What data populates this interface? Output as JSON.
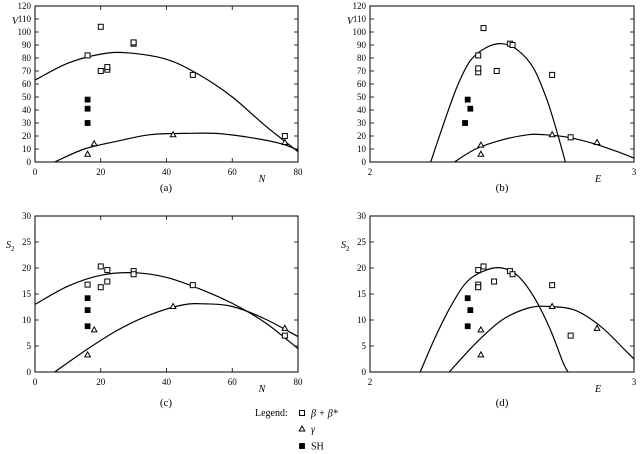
{
  "chart_data": [
    {
      "type": "scatter",
      "panel_label": "(a)",
      "xlabel": "N",
      "ylabel": "V",
      "xlim": [
        0,
        80
      ],
      "ylim": [
        0,
        120
      ],
      "xticks": [
        0,
        20,
        40,
        60,
        80
      ],
      "yticks": [
        0,
        10,
        20,
        30,
        40,
        50,
        60,
        70,
        80,
        90,
        100,
        110,
        120
      ],
      "series": [
        {
          "marker": "open-square",
          "points": [
            [
              16,
              82
            ],
            [
              20,
              104
            ],
            [
              20,
              70
            ],
            [
              22,
              71
            ],
            [
              22,
              73
            ],
            [
              30,
              91
            ],
            [
              30,
              92
            ],
            [
              48,
              67
            ],
            [
              76,
              20
            ]
          ]
        },
        {
          "marker": "triangle",
          "points": [
            [
              16,
              6
            ],
            [
              18,
              14
            ],
            [
              42,
              21
            ],
            [
              76,
              15
            ]
          ]
        },
        {
          "marker": "filled-square",
          "points": [
            [
              16,
              48
            ],
            [
              16,
              41
            ],
            [
              16,
              30
            ]
          ]
        }
      ],
      "curves": [
        {
          "points": [
            [
              0,
              63
            ],
            [
              10,
              76
            ],
            [
              20,
              83
            ],
            [
              28,
              84
            ],
            [
              40,
              79
            ],
            [
              50,
              67
            ],
            [
              60,
              50
            ],
            [
              70,
              28
            ],
            [
              80,
              8
            ]
          ]
        },
        {
          "points": [
            [
              6,
              0
            ],
            [
              15,
              10
            ],
            [
              25,
              16
            ],
            [
              35,
              21
            ],
            [
              45,
              22
            ],
            [
              55,
              22
            ],
            [
              65,
              19
            ],
            [
              75,
              14
            ],
            [
              80,
              9
            ]
          ]
        }
      ]
    },
    {
      "type": "scatter",
      "panel_label": "(b)",
      "xlabel": "E",
      "ylabel": "V",
      "xlim": [
        2,
        3
      ],
      "ylim": [
        0,
        120
      ],
      "xticks": [
        2,
        3
      ],
      "yticks": [
        0,
        10,
        20,
        30,
        40,
        50,
        60,
        70,
        80,
        90,
        100,
        110,
        120
      ],
      "series": [
        {
          "marker": "open-square",
          "points": [
            [
              2.41,
              82
            ],
            [
              2.43,
              103
            ],
            [
              2.41,
              69
            ],
            [
              2.41,
              72
            ],
            [
              2.48,
              70
            ],
            [
              2.53,
              91
            ],
            [
              2.54,
              90
            ],
            [
              2.69,
              67
            ],
            [
              2.76,
              19
            ]
          ]
        },
        {
          "marker": "triangle",
          "points": [
            [
              2.42,
              6
            ],
            [
              2.42,
              13
            ],
            [
              2.69,
              21
            ],
            [
              2.86,
              15
            ]
          ]
        },
        {
          "marker": "filled-square",
          "points": [
            [
              2.37,
              48
            ],
            [
              2.38,
              41
            ],
            [
              2.36,
              30
            ]
          ]
        }
      ],
      "curves": [
        {
          "points": [
            [
              2.23,
              0
            ],
            [
              2.28,
              30
            ],
            [
              2.33,
              58
            ],
            [
              2.38,
              78
            ],
            [
              2.44,
              88
            ],
            [
              2.5,
              91
            ],
            [
              2.56,
              86
            ],
            [
              2.62,
              72
            ],
            [
              2.67,
              48
            ],
            [
              2.71,
              22
            ],
            [
              2.74,
              0
            ]
          ]
        },
        {
          "points": [
            [
              2.32,
              0
            ],
            [
              2.4,
              10
            ],
            [
              2.5,
              17
            ],
            [
              2.6,
              21
            ],
            [
              2.66,
              21
            ],
            [
              2.75,
              19
            ],
            [
              2.85,
              14
            ],
            [
              2.95,
              7
            ],
            [
              3.0,
              3
            ]
          ]
        }
      ]
    },
    {
      "type": "scatter",
      "panel_label": "(c)",
      "xlabel": "N",
      "ylabel": "S2",
      "xlim": [
        0,
        80
      ],
      "ylim": [
        0,
        30
      ],
      "xticks": [
        0,
        20,
        40,
        60,
        80
      ],
      "yticks": [
        0,
        5,
        10,
        15,
        20,
        25,
        30
      ],
      "series": [
        {
          "marker": "open-square",
          "points": [
            [
              16,
              16.8
            ],
            [
              20,
              20.3
            ],
            [
              20,
              16.3
            ],
            [
              22,
              19.6
            ],
            [
              22,
              17.4
            ],
            [
              30,
              19.4
            ],
            [
              30,
              18.8
            ],
            [
              48,
              16.7
            ],
            [
              76,
              7.0
            ]
          ]
        },
        {
          "marker": "triangle",
          "points": [
            [
              16,
              3.3
            ],
            [
              18,
              8.1
            ],
            [
              42,
              12.6
            ],
            [
              76,
              8.4
            ]
          ]
        },
        {
          "marker": "filled-square",
          "points": [
            [
              16,
              14.2
            ],
            [
              16,
              11.9
            ],
            [
              16,
              8.8
            ]
          ]
        }
      ],
      "curves": [
        {
          "points": [
            [
              0,
              13
            ],
            [
              10,
              16.5
            ],
            [
              20,
              18.6
            ],
            [
              30,
              19.1
            ],
            [
              40,
              18.2
            ],
            [
              50,
              16
            ],
            [
              60,
              13.2
            ],
            [
              70,
              9.5
            ],
            [
              80,
              4.5
            ]
          ]
        },
        {
          "points": [
            [
              6,
              0
            ],
            [
              15,
              4
            ],
            [
              25,
              8
            ],
            [
              35,
              11
            ],
            [
              45,
              12.9
            ],
            [
              52,
              13.1
            ],
            [
              60,
              12.6
            ],
            [
              70,
              10.2
            ],
            [
              80,
              6.8
            ]
          ]
        }
      ]
    },
    {
      "type": "scatter",
      "panel_label": "(d)",
      "xlabel": "E",
      "ylabel": "S2",
      "xlim": [
        2,
        3
      ],
      "ylim": [
        0,
        30
      ],
      "xticks": [
        2,
        3
      ],
      "yticks": [
        0,
        5,
        10,
        15,
        20,
        25,
        30
      ],
      "series": [
        {
          "marker": "open-square",
          "points": [
            [
              2.41,
              16.8
            ],
            [
              2.43,
              20.3
            ],
            [
              2.41,
              16.3
            ],
            [
              2.41,
              19.6
            ],
            [
              2.47,
              17.4
            ],
            [
              2.53,
              19.4
            ],
            [
              2.54,
              18.8
            ],
            [
              2.69,
              16.7
            ],
            [
              2.76,
              7.0
            ]
          ]
        },
        {
          "marker": "triangle",
          "points": [
            [
              2.42,
              3.3
            ],
            [
              2.42,
              8.1
            ],
            [
              2.69,
              12.6
            ],
            [
              2.86,
              8.4
            ]
          ]
        },
        {
          "marker": "filled-square",
          "points": [
            [
              2.37,
              14.2
            ],
            [
              2.38,
              11.9
            ],
            [
              2.37,
              8.8
            ]
          ]
        }
      ],
      "curves": [
        {
          "points": [
            [
              2.19,
              0
            ],
            [
              2.25,
              7
            ],
            [
              2.31,
              13
            ],
            [
              2.37,
              17.5
            ],
            [
              2.44,
              19.6
            ],
            [
              2.5,
              20
            ],
            [
              2.56,
              18.5
            ],
            [
              2.62,
              14.5
            ],
            [
              2.68,
              8.5
            ],
            [
              2.73,
              2
            ],
            [
              2.75,
              0
            ]
          ]
        },
        {
          "points": [
            [
              2.3,
              0
            ],
            [
              2.4,
              5.5
            ],
            [
              2.5,
              10
            ],
            [
              2.6,
              12.3
            ],
            [
              2.68,
              12.6
            ],
            [
              2.78,
              11.8
            ],
            [
              2.88,
              8.5
            ],
            [
              2.97,
              4
            ],
            [
              3.0,
              2.5
            ]
          ]
        }
      ]
    }
  ],
  "legend": {
    "title": "Legend:",
    "entries": [
      {
        "marker": "open-square",
        "label": "β + β*"
      },
      {
        "marker": "triangle",
        "label": "γ"
      },
      {
        "marker": "filled-square",
        "label": "SH"
      }
    ]
  }
}
